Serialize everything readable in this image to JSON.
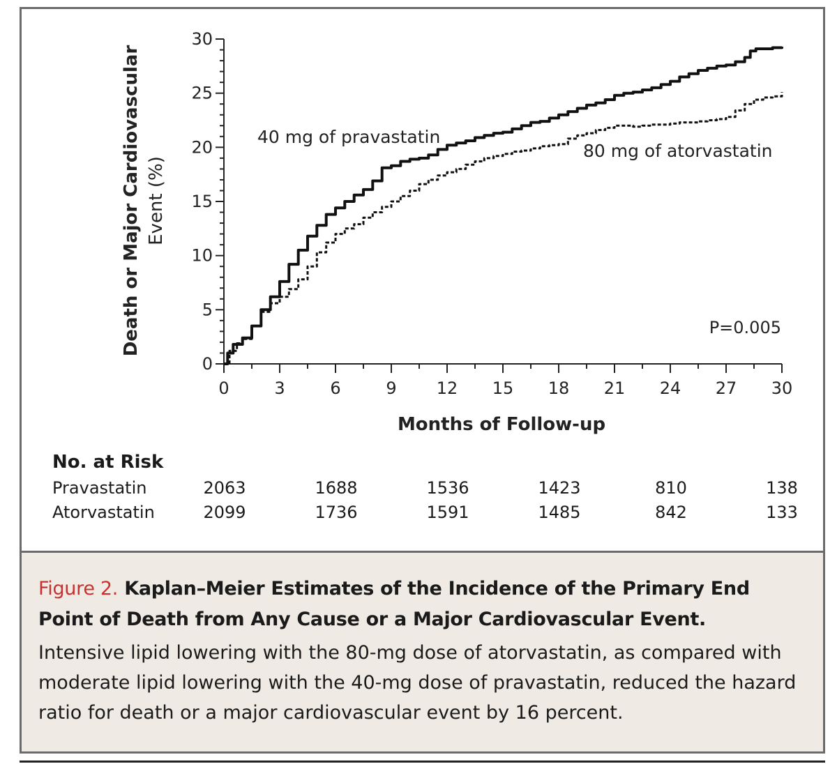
{
  "chart_data": {
    "type": "line",
    "title": "",
    "xlabel": "Months of Follow-up",
    "ylabel_line1": "Death or Major Cardiovascular",
    "ylabel_line2": "Event (%)",
    "xlim": [
      0,
      30
    ],
    "ylim": [
      0,
      30
    ],
    "x_ticks": [
      "0",
      "3",
      "6",
      "9",
      "12",
      "15",
      "18",
      "21",
      "24",
      "27",
      "30"
    ],
    "y_ticks": [
      "0",
      "5",
      "10",
      "15",
      "20",
      "25",
      "30"
    ],
    "annotation_pvalue": "P=0.005",
    "series": [
      {
        "name": "40 mg of pravastatin",
        "style": "solid",
        "x": [
          0,
          0.2,
          0.5,
          1,
          1.5,
          2,
          2.5,
          3,
          3.5,
          4,
          4.5,
          5,
          5.5,
          6,
          6.5,
          7,
          7.5,
          8,
          8.5,
          9,
          9.5,
          10,
          10.5,
          11,
          11.5,
          12,
          12.5,
          13,
          13.5,
          14,
          14.5,
          15,
          15.5,
          16,
          16.5,
          17,
          17.5,
          18,
          18.5,
          19,
          19.5,
          20,
          20.5,
          21,
          21.5,
          22,
          22.5,
          23,
          23.5,
          24,
          24.5,
          25,
          25.5,
          26,
          26.5,
          27,
          27.5,
          28,
          28.3,
          28.6,
          29,
          29.5,
          30
        ],
        "y": [
          0,
          1.0,
          1.8,
          2.4,
          3.5,
          5.0,
          6.2,
          7.6,
          9.2,
          10.5,
          11.8,
          12.8,
          13.8,
          14.4,
          15.0,
          15.6,
          16.1,
          16.9,
          18.1,
          18.3,
          18.7,
          18.9,
          19.0,
          19.3,
          19.8,
          20.2,
          20.4,
          20.6,
          20.9,
          21.1,
          21.3,
          21.4,
          21.7,
          22.0,
          22.3,
          22.4,
          22.7,
          23.0,
          23.3,
          23.6,
          23.9,
          24.1,
          24.4,
          24.8,
          25.0,
          25.1,
          25.3,
          25.5,
          25.8,
          26.1,
          26.5,
          26.8,
          27.1,
          27.3,
          27.5,
          27.6,
          27.9,
          28.3,
          28.9,
          29.1,
          29.1,
          29.2,
          29.3
        ]
      },
      {
        "name": "80 mg of atorvastatin",
        "style": "dashed",
        "x": [
          0,
          0.3,
          0.7,
          1,
          1.5,
          2,
          2.5,
          3,
          3.5,
          4,
          4.5,
          5,
          5.5,
          6,
          6.5,
          7,
          7.5,
          8,
          8.5,
          9,
          9.5,
          10,
          10.5,
          11,
          11.5,
          12,
          12.5,
          13,
          13.5,
          14,
          14.5,
          15,
          15.5,
          16,
          16.5,
          17,
          17.5,
          18,
          18.5,
          19,
          19.5,
          20,
          20.5,
          21,
          21.5,
          22,
          22.5,
          23,
          23.5,
          24,
          24.5,
          25,
          25.5,
          26,
          26.5,
          27,
          27.5,
          28,
          28.5,
          29,
          29.5,
          30
        ],
        "y": [
          0,
          1.2,
          1.9,
          2.3,
          3.5,
          4.8,
          5.6,
          6.2,
          6.9,
          7.8,
          9.0,
          10.3,
          11.2,
          12.0,
          12.5,
          12.9,
          13.5,
          14.0,
          14.5,
          15.0,
          15.5,
          16.0,
          16.6,
          17.0,
          17.4,
          17.7,
          18.0,
          18.4,
          18.7,
          19.0,
          19.2,
          19.4,
          19.6,
          19.7,
          19.9,
          20.1,
          20.2,
          20.3,
          20.8,
          21.1,
          21.3,
          21.6,
          21.8,
          22.0,
          22.0,
          21.9,
          22.0,
          22.1,
          22.1,
          22.2,
          22.3,
          22.3,
          22.4,
          22.5,
          22.6,
          22.8,
          23.4,
          24.0,
          24.4,
          24.6,
          24.7,
          25.1
        ]
      }
    ]
  },
  "risk_table": {
    "title": "No. at Risk",
    "months": [
      0,
      6,
      12,
      18,
      24,
      30
    ],
    "rows": [
      {
        "label": "Pravastatin",
        "values": [
          "2063",
          "1688",
          "1536",
          "1423",
          "810",
          "138"
        ]
      },
      {
        "label": "Atorvastatin",
        "values": [
          "2099",
          "1736",
          "1591",
          "1485",
          "842",
          "133"
        ]
      }
    ]
  },
  "caption": {
    "figure_label": "Figure 2.",
    "heading": "Kaplan–Meier Estimates of the Incidence of the Primary End Point of Death from Any Cause or a Major Cardiovascular Event.",
    "body": "Intensive lipid lowering with the 80-mg dose of atorvastatin, as compared with moderate lipid lowering with the 40-mg dose of pravastatin, reduced the hazard ratio for death or a major cardiovascular event by 16 percent."
  },
  "colors": {
    "figure_label": "#c8312f",
    "caption_bg": "#efebe4",
    "frame": "#6b6b6b"
  }
}
